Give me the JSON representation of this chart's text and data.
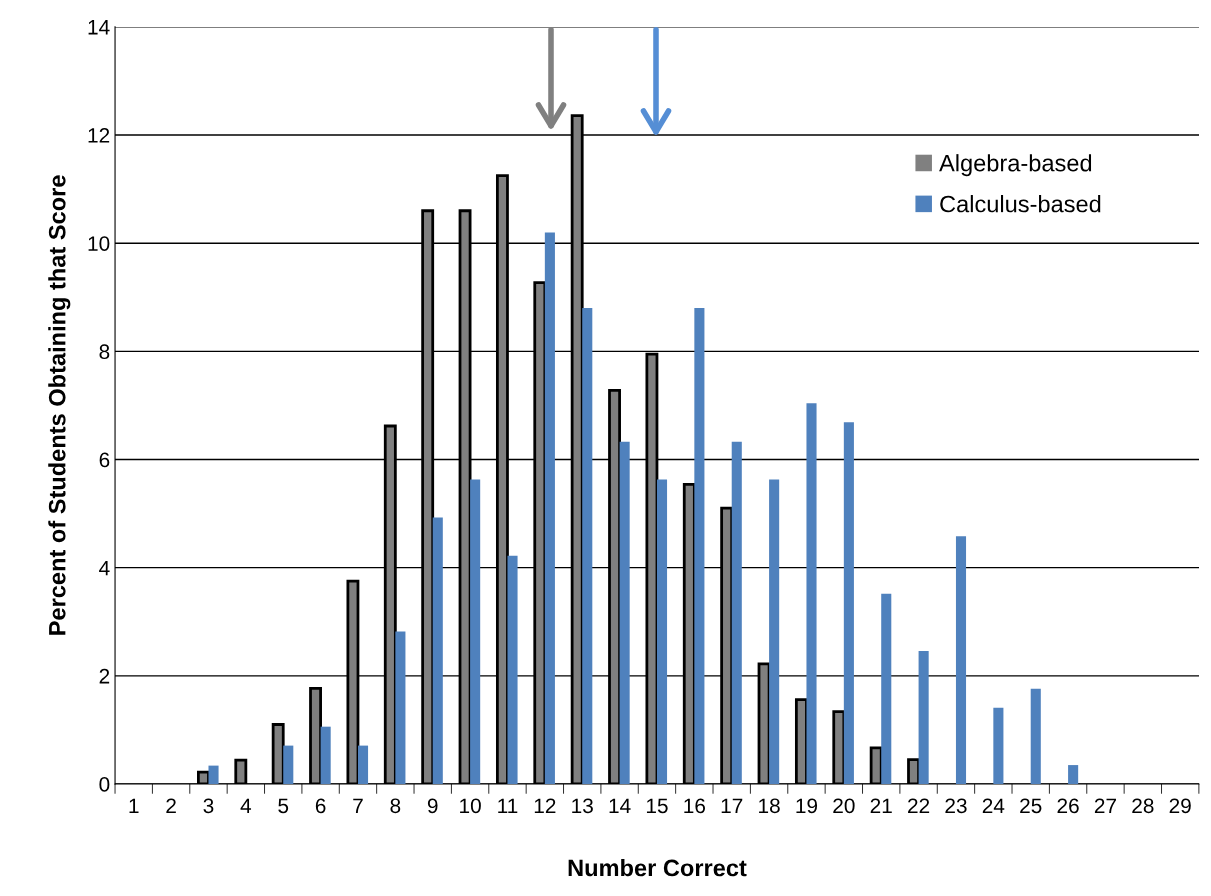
{
  "chart_data": {
    "type": "bar",
    "xlabel": "Number Correct",
    "ylabel": "Percent of Students Obtaining that Score",
    "categories": [
      "1",
      "2",
      "3",
      "4",
      "5",
      "6",
      "7",
      "8",
      "9",
      "10",
      "11",
      "12",
      "13",
      "14",
      "15",
      "16",
      "17",
      "18",
      "19",
      "20",
      "21",
      "22",
      "23",
      "24",
      "25",
      "26",
      "27",
      "28",
      "29"
    ],
    "series": [
      {
        "name": "Algebra-based",
        "color": "#808080",
        "values": [
          0,
          0,
          0.22,
          0.44,
          1.1,
          1.77,
          3.75,
          6.62,
          10.6,
          10.6,
          11.25,
          9.27,
          12.36,
          7.28,
          7.95,
          5.54,
          5.1,
          2.22,
          1.56,
          1.34,
          0.67,
          0.45,
          0,
          0,
          0,
          0,
          0,
          0,
          0
        ]
      },
      {
        "name": "Calculus-based",
        "color": "#4f81bd",
        "values": [
          0,
          0,
          0.34,
          0,
          0.71,
          1.06,
          0.71,
          2.82,
          4.93,
          5.63,
          4.22,
          10.2,
          8.8,
          6.33,
          5.63,
          8.8,
          6.33,
          5.63,
          7.04,
          6.69,
          3.52,
          2.46,
          4.58,
          1.41,
          1.76,
          0.35,
          0,
          0,
          0
        ]
      }
    ],
    "ylim": [
      0,
      14
    ],
    "yticks": [
      0,
      2,
      4,
      6,
      8,
      10,
      12,
      14
    ],
    "grid": "y",
    "legend": "top right"
  }
}
